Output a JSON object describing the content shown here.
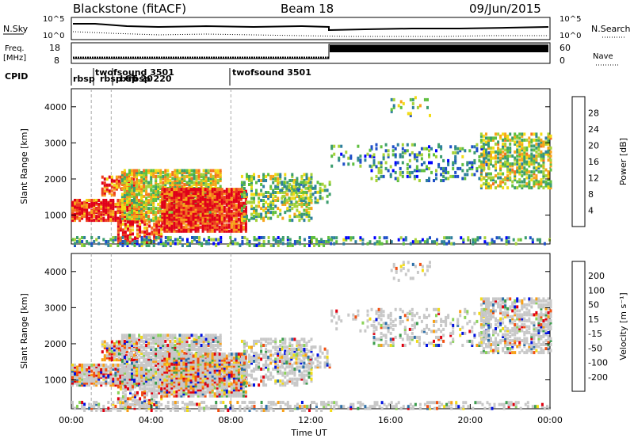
{
  "header": {
    "title": "Blackstone (fitACF)",
    "beam": "Beam 18",
    "date": "09/Jun/2015"
  },
  "top_panels": {
    "nsky_label": "N.Sky",
    "nsearch_label": "N.Search",
    "nsky_ticks": [
      "10^5",
      "10^0"
    ],
    "nsearch_ticks": [
      "10^5",
      "10^0"
    ],
    "freq_label_1": "Freq.",
    "freq_label_2": "[MHz]",
    "freq_ticks": [
      "18",
      "8"
    ],
    "nave_label": "Nave",
    "nave_ticks": [
      "60",
      "0"
    ],
    "cpid_label": "CPID",
    "cpid_events": [
      {
        "label": "rbsp",
        "hour": 0.0
      },
      {
        "label": "twofsound 3501",
        "hour": 1.0
      },
      {
        "label": "rbsp CT",
        "hour": 0.1
      },
      {
        "label": "rbsp 20",
        "hour": 2.0
      },
      {
        "label": "rbsp 220",
        "hour": 2.4
      },
      {
        "label": "twofsound 3501",
        "hour": 8.0
      }
    ]
  },
  "chart_data": [
    {
      "type": "heatmap",
      "name": "power",
      "ylabel": "Slant Range [km]",
      "xlabel": "Time UT",
      "xlim_hours": [
        0,
        24
      ],
      "ylim": [
        200,
        4500
      ],
      "y_ticks": [
        "4000",
        "3000",
        "2000",
        "1000"
      ],
      "y_tick_values": [
        4000,
        3000,
        2000,
        1000
      ],
      "x_ticks": [
        "00:00",
        "04:00",
        "08:00",
        "12:00",
        "16:00",
        "20:00",
        "00:00"
      ],
      "colorbar": {
        "label": "Power [dB]",
        "ticks": [
          "28",
          "24",
          "20",
          "16",
          "12",
          "8",
          "4"
        ],
        "colors": [
          "#0000ff",
          "#1f4fc8",
          "#2e7f9e",
          "#3c9d6e",
          "#5fbf3f",
          "#a6d23a",
          "#f2dc14",
          "#f7a51a",
          "#f47320",
          "#ec3d1e",
          "#e0001a"
        ]
      }
    },
    {
      "type": "heatmap",
      "name": "velocity",
      "ylabel": "Slant Range [km]",
      "xlabel": "Time UT",
      "xlim_hours": [
        0,
        24
      ],
      "ylim": [
        200,
        4500
      ],
      "y_ticks": [
        "4000",
        "3000",
        "2000",
        "1000"
      ],
      "y_tick_values": [
        4000,
        3000,
        2000,
        1000
      ],
      "x_ticks": [
        "00:00",
        "04:00",
        "08:00",
        "12:00",
        "16:00",
        "20:00",
        "00:00"
      ],
      "colorbar": {
        "label": "Velocity [m s⁻¹]",
        "ticks": [
          "200",
          "100",
          "50",
          "15",
          "-15",
          "-50",
          "-100",
          "-200"
        ],
        "colors": [
          "#e00010",
          "#f25012",
          "#f7a018",
          "#f2dc14",
          "#c8c8c8",
          "#8cd25a",
          "#3c9d4e",
          "#2e6fa8",
          "#0010e0"
        ]
      }
    }
  ],
  "x_axis_title": "Time UT"
}
